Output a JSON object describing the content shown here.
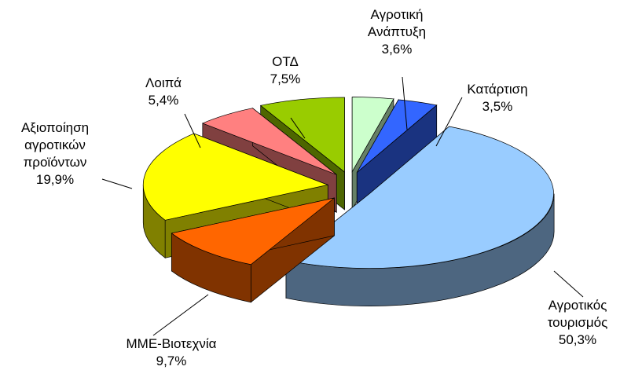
{
  "chart_data": {
    "type": "pie",
    "categories": [
      "Αγροτική\nΑνάπτυξη",
      "Κατάρτιση",
      "Αγροτικός\nτουρισμός",
      "ΜΜΕ-Βιοτεχνία",
      "Αξιοποίηση\nαγροτικών\nπροϊόντων",
      "Λοιπά",
      "ΟΤΔ"
    ],
    "values": [
      3.6,
      3.5,
      50.3,
      9.7,
      19.9,
      5.4,
      7.5
    ],
    "value_labels": [
      "3,6%",
      "3,5%",
      "50,3%",
      "9,7%",
      "19,9%",
      "5,4%",
      "7,5%"
    ],
    "colors": [
      "#ccffcc",
      "#3366ff",
      "#99ccff",
      "#ff6600",
      "#ffff00",
      "#ff8080",
      "#99cc00"
    ]
  }
}
